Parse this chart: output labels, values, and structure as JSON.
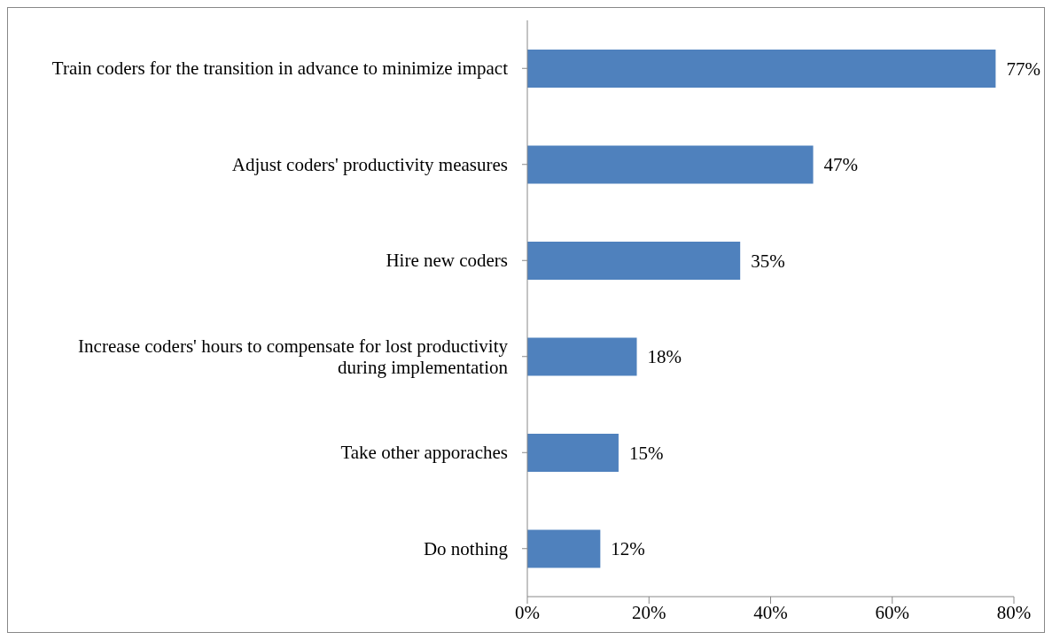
{
  "chart_data": {
    "type": "bar",
    "orientation": "horizontal",
    "categories": [
      "Train coders for the transition in advance to minimize impact",
      "Adjust coders' productivity measures",
      "Hire new coders",
      "Increase coders' hours to compensate for lost productivity during implementation",
      "Take other apporaches",
      "Do nothing"
    ],
    "values": [
      77,
      47,
      35,
      18,
      15,
      12
    ],
    "value_labels": [
      "77%",
      "47%",
      "35%",
      "18%",
      "15%",
      "12%"
    ],
    "color": "#4f81bd",
    "xlim": [
      0,
      80
    ],
    "xticks": [
      {
        "value": 0,
        "label": "0%"
      },
      {
        "value": 20,
        "label": "20%"
      },
      {
        "value": 40,
        "label": "40%"
      },
      {
        "value": 60,
        "label": "60%"
      },
      {
        "value": 80,
        "label": "80%"
      }
    ],
    "grid": false,
    "legend": false
  }
}
